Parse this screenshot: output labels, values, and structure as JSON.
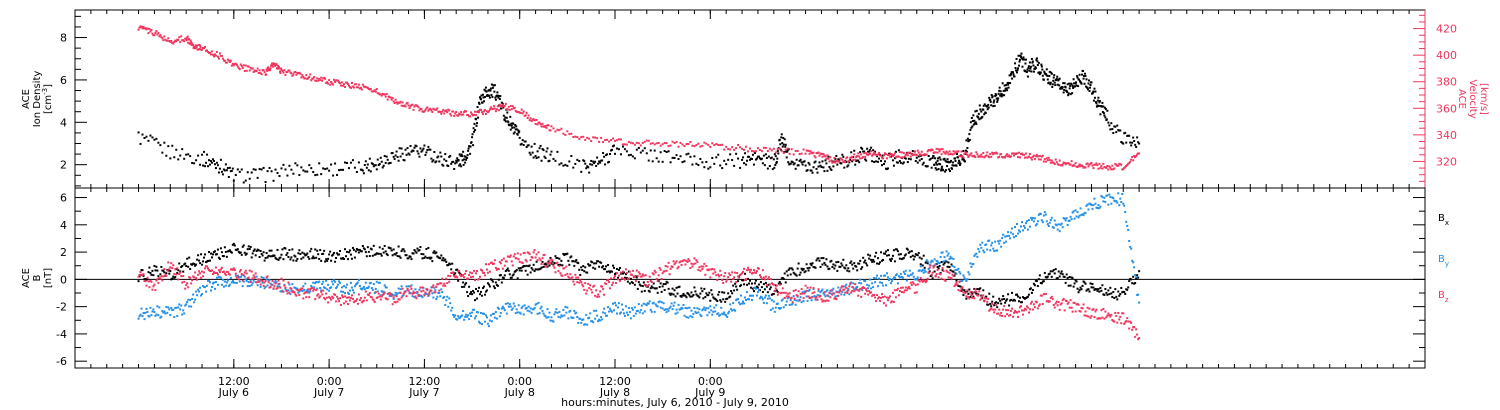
{
  "chart_data": [
    {
      "type": "scatter",
      "ylabel_lines": [
        "ACE",
        "Ion Density",
        "[cm",
        "-3",
        "]"
      ],
      "y2label_lines": [
        "ACE",
        "Velocity",
        "[km/s]"
      ],
      "ylim": [
        0.9,
        9.3
      ],
      "y2lim": [
        300,
        434
      ],
      "yticks": [
        2,
        4,
        6,
        8
      ],
      "y2ticks": [
        320,
        340,
        360,
        380,
        400,
        420
      ],
      "series": [
        {
          "name": "",
          "axis": "left",
          "color": "#000000",
          "x": [
            0,
            4,
            8,
            10,
            12,
            16,
            20,
            24,
            28,
            30,
            32,
            34,
            36,
            38,
            40,
            41,
            42,
            43,
            44,
            45,
            46,
            47,
            48,
            50,
            52,
            56,
            58,
            60,
            64,
            68,
            72,
            76,
            78,
            80,
            81,
            82,
            84,
            86,
            88,
            90,
            92,
            94,
            96,
            98,
            100,
            101,
            102,
            103,
            104,
            105,
            106,
            107,
            108,
            109,
            110,
            111,
            112,
            113,
            114,
            115,
            116,
            117,
            118,
            119,
            120,
            121,
            122,
            124,
            126
          ],
          "y": [
            3.3,
            2.6,
            2.3,
            2.0,
            1.5,
            1.5,
            1.8,
            1.8,
            1.9,
            2.1,
            2.4,
            2.6,
            2.6,
            2.3,
            2.1,
            2.3,
            3.0,
            5.0,
            5.5,
            5.4,
            4.5,
            3.8,
            3.2,
            2.6,
            2.4,
            1.9,
            2.1,
            2.7,
            2.5,
            2.3,
            2.1,
            2.2,
            2.3,
            2.0,
            3.2,
            2.3,
            1.9,
            2.0,
            2.1,
            2.3,
            2.6,
            2.1,
            2.4,
            2.3,
            2.1,
            2.0,
            1.9,
            2.2,
            2.4,
            4.0,
            4.5,
            4.8,
            5.2,
            5.6,
            6.2,
            7.0,
            6.5,
            6.8,
            6.3,
            6.0,
            5.8,
            5.5,
            5.8,
            6.2,
            5.6,
            4.8,
            4.2,
            3.2,
            3.0
          ]
        },
        {
          "name": "",
          "axis": "right",
          "color": "#f0365e",
          "x": [
            0,
            2,
            4,
            6,
            7,
            8,
            10,
            12,
            14,
            16,
            17,
            18,
            20,
            22,
            24,
            26,
            28,
            30,
            32,
            34,
            36,
            38,
            40,
            42,
            44,
            46,
            48,
            50,
            52,
            56,
            60,
            64,
            68,
            72,
            76,
            80,
            84,
            86,
            88,
            90,
            92,
            94,
            96,
            98,
            100,
            102,
            104,
            106,
            108,
            110,
            112,
            114,
            116,
            118,
            120,
            122,
            124,
            126
          ],
          "y": [
            421,
            417,
            410,
            413,
            407,
            405,
            400,
            393,
            389,
            387,
            393,
            388,
            385,
            383,
            380,
            378,
            376,
            373,
            366,
            362,
            359,
            358,
            356,
            356,
            358,
            362,
            358,
            350,
            345,
            338,
            335,
            334,
            333,
            332,
            330,
            328,
            327,
            324,
            320,
            323,
            326,
            324,
            325,
            326,
            328,
            327,
            325,
            325,
            325,
            325,
            324,
            322,
            319,
            318,
            317,
            316,
            316,
            326
          ]
        }
      ]
    },
    {
      "type": "scatter",
      "ylabel_lines": [
        "ACE",
        "B",
        "[nT]"
      ],
      "ylim": [
        -6.5,
        6.7
      ],
      "yticks": [
        6,
        4,
        2,
        0,
        -2,
        -4,
        -6
      ],
      "zero_line": true,
      "legend": "right",
      "series": [
        {
          "name": "B",
          "sub": "x",
          "color": "#000000",
          "x": [
            0,
            2,
            4,
            6,
            8,
            10,
            12,
            14,
            16,
            18,
            20,
            22,
            24,
            26,
            28,
            30,
            32,
            34,
            36,
            38,
            40,
            42,
            44,
            46,
            48,
            50,
            52,
            54,
            56,
            58,
            60,
            62,
            64,
            66,
            68,
            70,
            72,
            74,
            76,
            78,
            80,
            82,
            84,
            86,
            88,
            90,
            92,
            94,
            96,
            98,
            100,
            102,
            104,
            106,
            108,
            110,
            112,
            114,
            116,
            118,
            120,
            122,
            124,
            126
          ],
          "y": [
            0.2,
            0.6,
            0.3,
            1.1,
            1.5,
            1.8,
            2.2,
            2.0,
            1.7,
            1.9,
            1.7,
            1.8,
            1.6,
            1.8,
            2.0,
            2.1,
            2.0,
            1.9,
            2.0,
            1.5,
            0.5,
            -1.3,
            -0.6,
            0.3,
            0.5,
            1.0,
            1.2,
            1.5,
            0.6,
            1.2,
            0.6,
            0.1,
            -0.8,
            -0.5,
            -0.9,
            -0.9,
            -1.2,
            -1.4,
            0.1,
            -0.6,
            -0.8,
            0.5,
            0.9,
            1.2,
            1.0,
            1.0,
            1.4,
            1.7,
            1.8,
            1.9,
            0.5,
            1.2,
            -1.0,
            -1.1,
            -1.8,
            -1.4,
            -1.2,
            0.3,
            0.5,
            -0.5,
            -0.6,
            -0.9,
            -1.1,
            0.6
          ]
        },
        {
          "name": "B",
          "sub": "y",
          "color": "#2490e8",
          "x": [
            0,
            2,
            4,
            6,
            8,
            10,
            12,
            14,
            16,
            18,
            20,
            22,
            24,
            26,
            28,
            30,
            32,
            34,
            36,
            38,
            40,
            42,
            44,
            46,
            48,
            50,
            52,
            54,
            56,
            58,
            60,
            62,
            64,
            66,
            68,
            70,
            72,
            74,
            76,
            78,
            80,
            82,
            84,
            86,
            88,
            90,
            92,
            94,
            96,
            98,
            100,
            102,
            104,
            106,
            108,
            110,
            112,
            114,
            116,
            118,
            120,
            122,
            124,
            126
          ],
          "y": [
            -2.6,
            -2.3,
            -2.5,
            -2.1,
            -0.7,
            -0.2,
            0.0,
            -0.1,
            -0.3,
            -0.5,
            -0.8,
            -0.6,
            -0.4,
            -0.7,
            -0.4,
            -0.6,
            -1.1,
            -0.8,
            -1.0,
            -1.0,
            -2.5,
            -2.6,
            -3.1,
            -2.1,
            -2.2,
            -2.0,
            -2.7,
            -2.4,
            -3.1,
            -2.6,
            -2.0,
            -2.6,
            -1.9,
            -2.0,
            -2.2,
            -2.5,
            -2.3,
            -2.4,
            -1.5,
            -0.9,
            -2.0,
            -1.5,
            -1.3,
            -1.0,
            -0.8,
            -0.6,
            -0.3,
            0.0,
            0.1,
            0.4,
            1.4,
            1.8,
            -0.2,
            2.3,
            2.5,
            3.4,
            4.1,
            4.6,
            3.8,
            4.8,
            5.5,
            5.8,
            5.9,
            -1.7
          ]
        },
        {
          "name": "B",
          "sub": "z",
          "color": "#f0365e",
          "x": [
            0,
            2,
            4,
            6,
            8,
            10,
            12,
            14,
            16,
            18,
            20,
            22,
            24,
            26,
            28,
            30,
            32,
            34,
            36,
            38,
            40,
            42,
            44,
            46,
            48,
            50,
            52,
            54,
            56,
            58,
            60,
            62,
            64,
            66,
            68,
            70,
            72,
            74,
            76,
            78,
            80,
            82,
            84,
            86,
            88,
            90,
            92,
            94,
            96,
            98,
            100,
            102,
            104,
            106,
            108,
            110,
            112,
            114,
            116,
            118,
            120,
            122,
            124,
            126
          ],
          "y": [
            0.5,
            -0.6,
            1.0,
            -0.4,
            0.5,
            0.6,
            0.4,
            0.2,
            -0.1,
            -0.4,
            -1.0,
            -1.0,
            -1.3,
            -1.5,
            -1.4,
            -1.2,
            -1.5,
            -0.9,
            -1.0,
            -0.5,
            0.4,
            0.1,
            0.8,
            1.2,
            1.5,
            1.8,
            1.1,
            0.5,
            -0.6,
            -1.0,
            0.0,
            0.5,
            -0.1,
            0.5,
            1.2,
            1.3,
            0.5,
            0.0,
            0.3,
            0.7,
            -0.5,
            -1.4,
            -0.9,
            -1.2,
            -1.1,
            -0.6,
            -1.2,
            -1.6,
            -1.0,
            -0.5,
            0.8,
            0.2,
            -0.9,
            -1.3,
            -2.3,
            -2.4,
            -2.2,
            -1.4,
            -1.8,
            -2.0,
            -2.4,
            -2.6,
            -2.8,
            -4.3
          ]
        }
      ]
    }
  ],
  "xaxis": {
    "xlim": [
      -8,
      162
    ],
    "ticks": [
      {
        "x": 12,
        "time": "12:00",
        "date": "July 6"
      },
      {
        "x": 24,
        "time": "0:00",
        "date": "July 7"
      },
      {
        "x": 36,
        "time": "12:00",
        "date": "July 7"
      },
      {
        "x": 48,
        "time": "0:00",
        "date": "July 8"
      },
      {
        "x": 60,
        "time": "12:00",
        "date": "July 8"
      },
      {
        "x": 72,
        "time": "0:00",
        "date": "July 9"
      }
    ],
    "xlabel": "hours:minutes, July  6, 2010 - July  9, 2010"
  }
}
